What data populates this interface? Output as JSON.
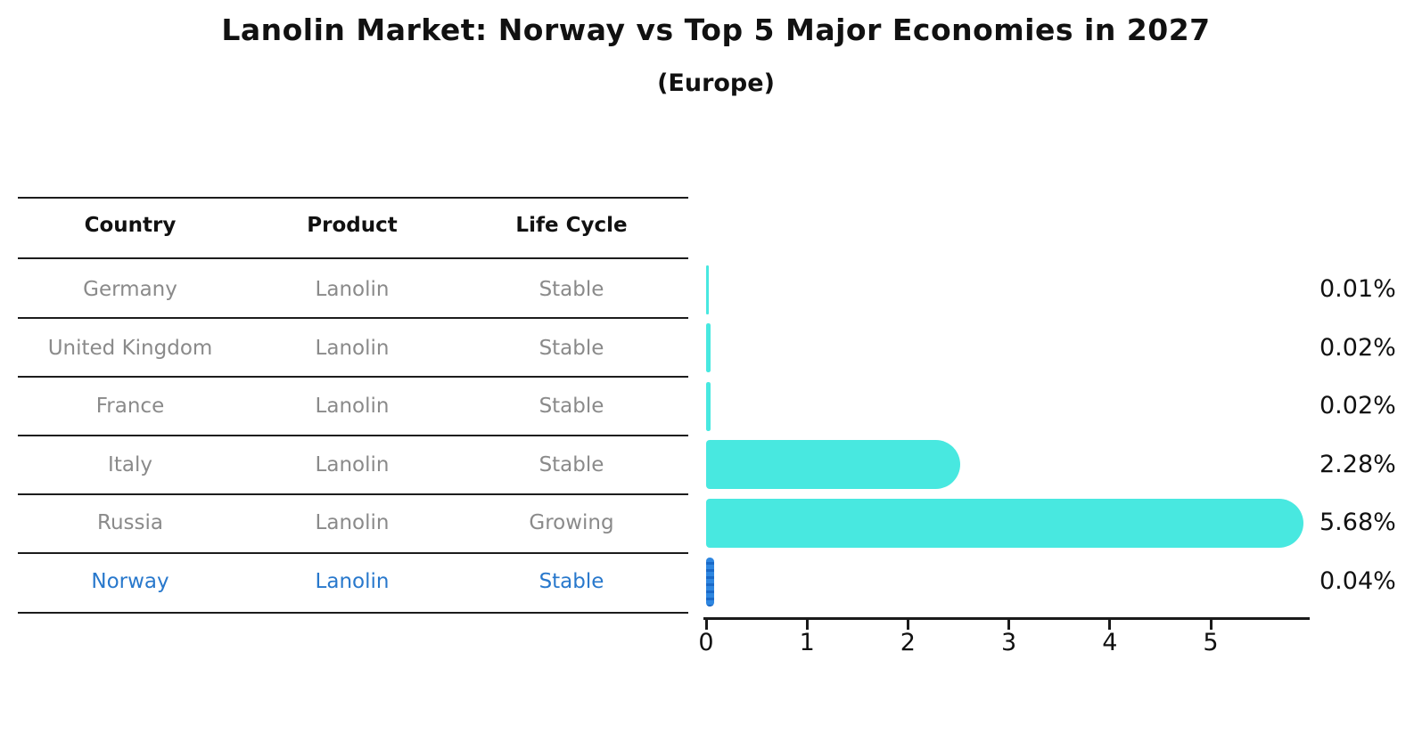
{
  "title": "Lanolin Market: Norway vs Top 5 Major Economies in 2027",
  "subtitle": "(Europe)",
  "table": {
    "headers": [
      "Country",
      "Product",
      "Life Cycle"
    ],
    "rows": [
      {
        "country": "Germany",
        "product": "Lanolin",
        "life_cycle": "Stable",
        "highlighted": false
      },
      {
        "country": "United Kingdom",
        "product": "Lanolin",
        "life_cycle": "Stable",
        "highlighted": false
      },
      {
        "country": "France",
        "product": "Lanolin",
        "life_cycle": "Stable",
        "highlighted": false
      },
      {
        "country": "Italy",
        "product": "Lanolin",
        "life_cycle": "Stable",
        "highlighted": false
      },
      {
        "country": "Russia",
        "product": "Lanolin",
        "life_cycle": "Growing",
        "highlighted": false
      },
      {
        "country": "Norway",
        "product": "Lanolin",
        "life_cycle": "Stable",
        "highlighted": true
      }
    ]
  },
  "chart_data": {
    "type": "bar",
    "orientation": "horizontal",
    "title": "Lanolin Market: Norway vs Top 5 Major Economies in 2027 (Europe)",
    "categories": [
      "Germany",
      "United Kingdom",
      "France",
      "Italy",
      "Russia",
      "Norway"
    ],
    "values": [
      0.01,
      0.02,
      0.02,
      2.28,
      5.68,
      0.04
    ],
    "value_labels": [
      "0.01%",
      "0.02%",
      "0.02%",
      "2.28%",
      "5.68%",
      "0.04%"
    ],
    "xlabel": "",
    "ylabel": "",
    "xlim": [
      0,
      6
    ],
    "x_ticks": [
      0,
      1,
      2,
      3,
      4,
      5
    ],
    "grid": false,
    "legend": false,
    "bar_color": "#48e8e0",
    "highlight_bar_color": "#2e86e0",
    "highlight_category": "Norway"
  },
  "colors": {
    "row_text": "#8a8a8a",
    "highlight_text": "#2878cc",
    "header_text": "#111111",
    "axis": "#1a1a1a",
    "background": "#ffffff"
  }
}
